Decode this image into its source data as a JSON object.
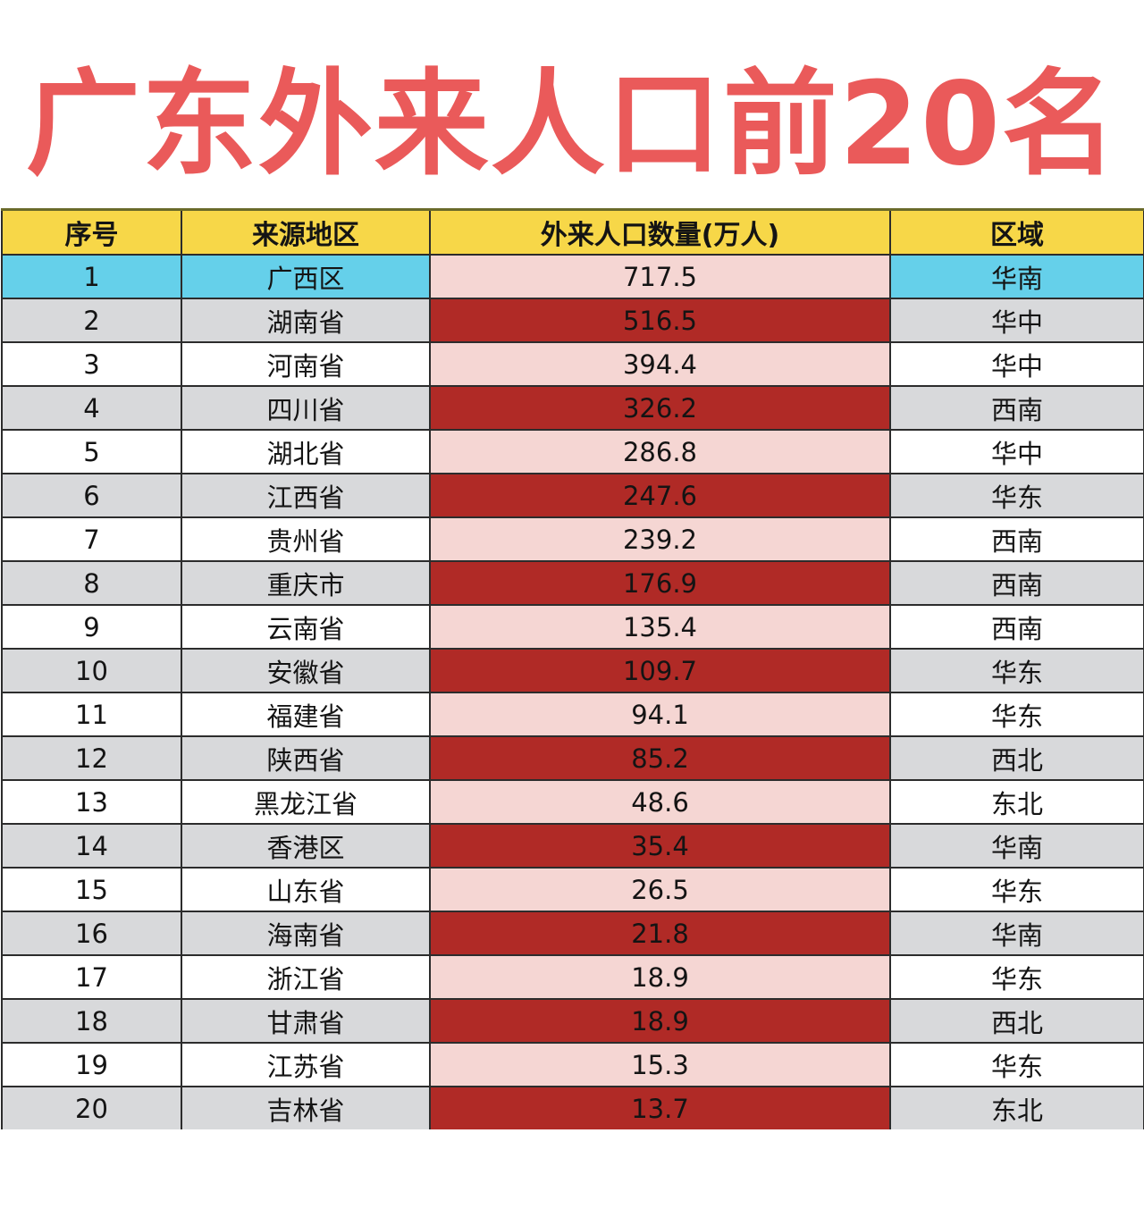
{
  "title": "广东外来人口前20名",
  "colors": {
    "title": "#ea5a5a",
    "header_bg": "#f7d748",
    "highlight_row_bg": "#65d0ea",
    "even_row_bg": "#d8d9db",
    "odd_row_bg": "#ffffff",
    "value_light_bg": "#f5d6d3",
    "value_dark_bg": "#b02a26"
  },
  "table": {
    "headers": [
      "序号",
      "来源地区",
      "外来人口数量(万人)",
      "区域"
    ],
    "rows": [
      {
        "rank": "1",
        "region": "广西区",
        "population": "717.5",
        "area": "华南"
      },
      {
        "rank": "2",
        "region": "湖南省",
        "population": "516.5",
        "area": "华中"
      },
      {
        "rank": "3",
        "region": "河南省",
        "population": "394.4",
        "area": "华中"
      },
      {
        "rank": "4",
        "region": "四川省",
        "population": "326.2",
        "area": "西南"
      },
      {
        "rank": "5",
        "region": "湖北省",
        "population": "286.8",
        "area": "华中"
      },
      {
        "rank": "6",
        "region": "江西省",
        "population": "247.6",
        "area": "华东"
      },
      {
        "rank": "7",
        "region": "贵州省",
        "population": "239.2",
        "area": "西南"
      },
      {
        "rank": "8",
        "region": "重庆市",
        "population": "176.9",
        "area": "西南"
      },
      {
        "rank": "9",
        "region": "云南省",
        "population": "135.4",
        "area": "西南"
      },
      {
        "rank": "10",
        "region": "安徽省",
        "population": "109.7",
        "area": "华东"
      },
      {
        "rank": "11",
        "region": "福建省",
        "population": "94.1",
        "area": "华东"
      },
      {
        "rank": "12",
        "region": "陕西省",
        "population": "85.2",
        "area": "西北"
      },
      {
        "rank": "13",
        "region": "黑龙江省",
        "population": "48.6",
        "area": "东北"
      },
      {
        "rank": "14",
        "region": "香港区",
        "population": "35.4",
        "area": "华南"
      },
      {
        "rank": "15",
        "region": "山东省",
        "population": "26.5",
        "area": "华东"
      },
      {
        "rank": "16",
        "region": "海南省",
        "population": "21.8",
        "area": "华南"
      },
      {
        "rank": "17",
        "region": "浙江省",
        "population": "18.9",
        "area": "华东"
      },
      {
        "rank": "18",
        "region": "甘肃省",
        "population": "18.9",
        "area": "西北"
      },
      {
        "rank": "19",
        "region": "江苏省",
        "population": "15.3",
        "area": "华东"
      },
      {
        "rank": "20",
        "region": "吉林省",
        "population": "13.7",
        "area": "东北"
      }
    ]
  }
}
